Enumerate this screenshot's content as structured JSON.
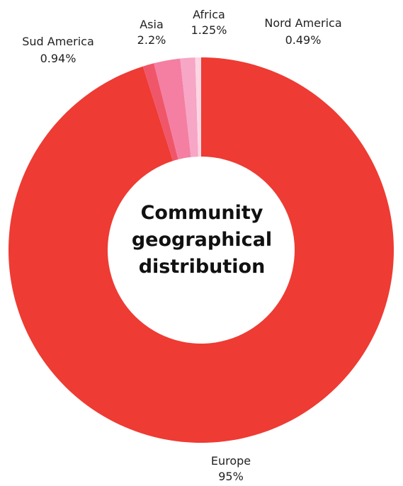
{
  "chart_data": {
    "type": "pie",
    "title": "Community\ngeographical\ndistribution",
    "categories": [
      "Europe",
      "Sud America",
      "Asia",
      "Africa",
      "Nord America"
    ],
    "values": [
      95,
      0.94,
      2.2,
      1.25,
      0.49
    ],
    "value_labels": [
      "95%",
      "0.94%",
      "2.2%",
      "1.25%",
      "0.49%"
    ],
    "colors": [
      "#ee3b33",
      "#f0566a",
      "#f47fa3",
      "#f7a6c6",
      "#fbd6e4"
    ],
    "style": "donut",
    "legend": "none",
    "labels_outside": true
  }
}
